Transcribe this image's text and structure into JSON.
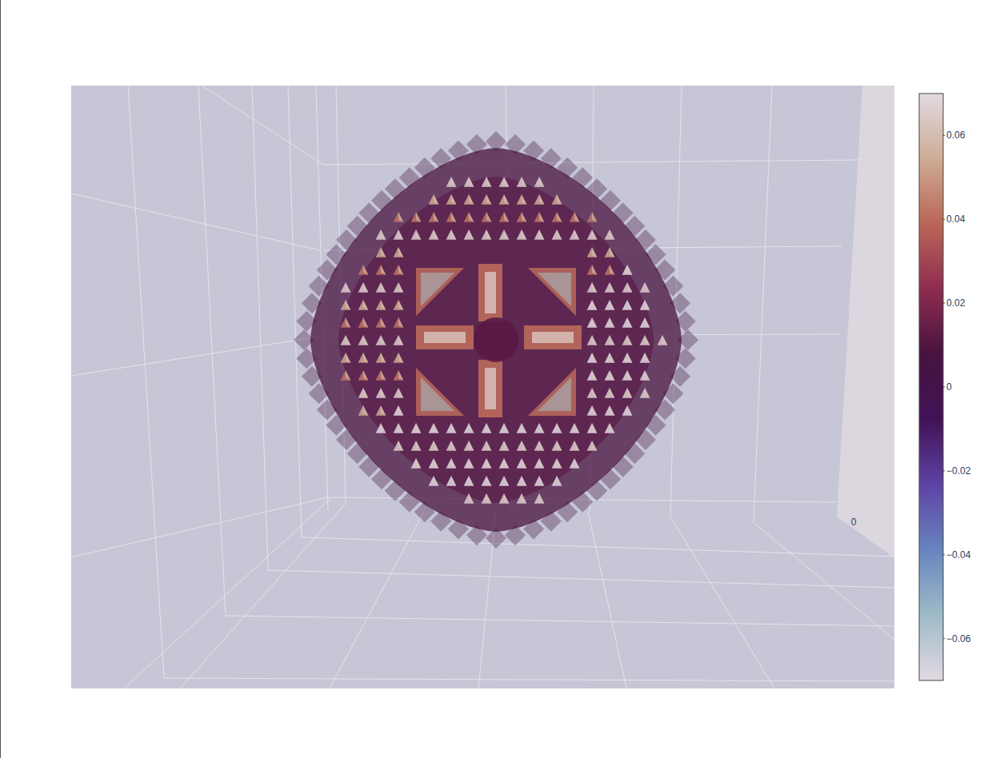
{
  "chart_data": {
    "type": "volume",
    "grid": true,
    "xticks": [
      0
    ],
    "colorbar_range": [
      -0.07,
      0.07
    ],
    "colorbar_ticks": [
      0.06,
      0.04,
      0.02,
      0,
      {
        "value": -0.02,
        "label": "−0.02"
      },
      {
        "value": -0.04,
        "label": "−0.04"
      },
      {
        "value": -0.06,
        "label": "−0.06"
      }
    ]
  }
}
